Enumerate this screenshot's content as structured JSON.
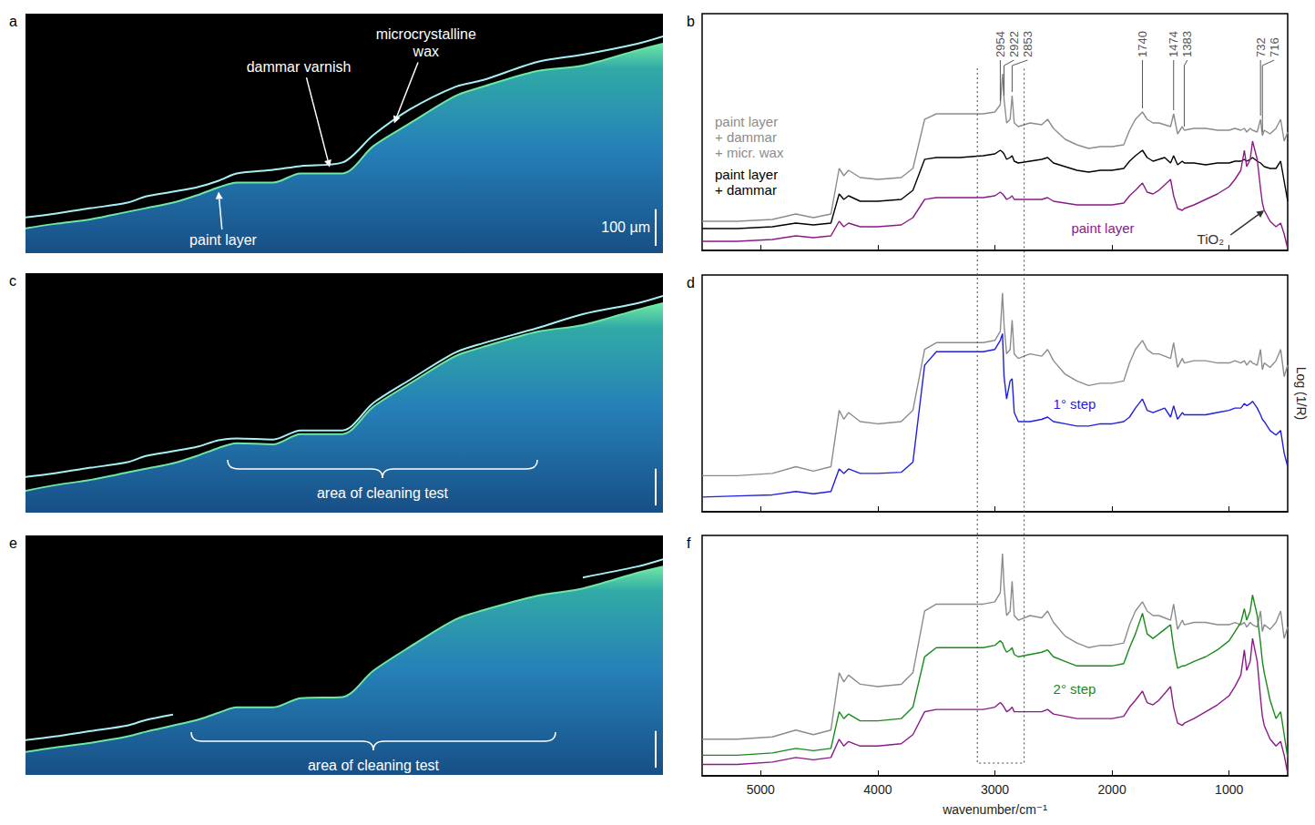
{
  "chart_data": [
    {
      "panel": "a",
      "type": "area",
      "x": [
        0,
        80,
        180,
        280,
        330,
        405,
        470,
        530,
        580,
        680,
        755,
        870,
        955,
        1055,
        1180,
        1255,
        1405,
        1530,
        1680,
        1750
      ],
      "xlim": [
        0,
        1750
      ],
      "ylim": [
        655,
        0
      ],
      "tick_labels": false,
      "series": [
        {
          "color": "#6ee6a4",
          "values": [
            587,
            575,
            562,
            542,
            532,
            517,
            497,
            475,
            462,
            462,
            437,
            437,
            362,
            300,
            225,
            200,
            157,
            142,
            100,
            82
          ]
        },
        {
          "color": "#a6f0f4",
          "values": [
            557,
            547,
            532,
            517,
            500,
            487,
            475,
            457,
            437,
            427,
            417,
            407,
            332,
            262,
            200,
            182,
            132,
            112,
            82,
            62
          ]
        }
      ],
      "annotations": [
        {
          "text": "paint layer",
          "x": 530,
          "y": 487
        },
        {
          "text": "dammar varnish",
          "x": 835,
          "y": 420
        },
        {
          "text": "microcrystalline wax",
          "x": 1012,
          "y": 300
        }
      ],
      "scale_bar": {
        "label": "100 µm",
        "length": 100
      }
    },
    {
      "panel": "b",
      "type": "line",
      "x": [
        5500,
        5200,
        4900,
        4700,
        4550,
        4400,
        4330,
        4290,
        4250,
        4150,
        4000,
        3800,
        3700,
        3600,
        3500,
        3300,
        3100,
        3000,
        2954,
        2935,
        2922,
        2900,
        2870,
        2853,
        2835,
        2800,
        2700,
        2600,
        2550,
        2500,
        2400,
        2300,
        2200,
        2100,
        2000,
        1900,
        1850,
        1800,
        1740,
        1700,
        1650,
        1600,
        1550,
        1500,
        1474,
        1440,
        1400,
        1383,
        1300,
        1200,
        1100,
        1000,
        950,
        900,
        870,
        850,
        820,
        800,
        760,
        732,
        716,
        700,
        650,
        600,
        560,
        530,
        500
      ],
      "xlim": [
        5500,
        500
      ],
      "xticks": [
        5000,
        4000,
        3000,
        2000,
        1000
      ],
      "ylim": [
        0,
        13
      ],
      "tick_labels": false,
      "series": [
        {
          "name": "paint layer + dammar + micr. wax",
          "color": "#8c8c8c",
          "values": [
            1.6,
            1.6,
            1.7,
            2.0,
            1.8,
            2.0,
            4.5,
            4.1,
            4.4,
            4.0,
            3.9,
            4.0,
            4.5,
            7.2,
            7.5,
            7.5,
            7.5,
            7.6,
            8.0,
            9.7,
            8.3,
            7.0,
            7.2,
            8.5,
            7.0,
            6.8,
            7.0,
            6.9,
            7.2,
            6.7,
            6.1,
            5.8,
            5.6,
            5.7,
            5.7,
            5.8,
            6.6,
            7.2,
            7.6,
            7.2,
            7.0,
            7.0,
            6.9,
            6.8,
            7.5,
            6.4,
            6.8,
            6.6,
            6.7,
            6.7,
            6.6,
            6.6,
            6.7,
            6.6,
            6.7,
            6.5,
            6.7,
            6.6,
            6.5,
            7.2,
            6.3,
            6.6,
            6.4,
            6.7,
            7.2,
            6.0,
            6.5
          ]
        },
        {
          "name": "paint layer + dammar",
          "color": "#000000",
          "values": [
            1.2,
            1.2,
            1.3,
            1.5,
            1.4,
            1.5,
            3.1,
            2.8,
            3.0,
            2.7,
            2.7,
            2.8,
            3.3,
            5.0,
            5.1,
            5.1,
            5.2,
            5.3,
            5.5,
            5.4,
            5.3,
            5.0,
            5.1,
            5.2,
            4.9,
            4.8,
            4.9,
            5.0,
            5.1,
            4.8,
            4.6,
            4.4,
            4.3,
            4.4,
            4.4,
            4.5,
            4.9,
            5.2,
            5.5,
            5.1,
            4.9,
            5.0,
            5.1,
            4.8,
            5.2,
            4.7,
            4.9,
            4.8,
            4.8,
            4.7,
            4.8,
            4.8,
            4.9,
            4.9,
            5.0,
            4.9,
            5.0,
            5.1,
            4.9,
            4.8,
            4.7,
            4.6,
            4.5,
            4.5,
            4.9,
            3.8,
            2.7
          ]
        },
        {
          "name": "paint layer",
          "color": "#8b1a89",
          "values": [
            0.5,
            0.5,
            0.6,
            0.8,
            0.7,
            0.8,
            1.6,
            1.3,
            1.5,
            1.3,
            1.3,
            1.4,
            1.8,
            2.8,
            2.9,
            2.9,
            2.9,
            3.0,
            3.2,
            3.1,
            3.0,
            2.8,
            2.9,
            3.0,
            2.8,
            2.8,
            2.8,
            2.8,
            2.9,
            2.7,
            2.6,
            2.5,
            2.5,
            2.5,
            2.5,
            2.6,
            3.0,
            3.3,
            3.7,
            3.2,
            3.1,
            3.3,
            3.6,
            3.9,
            3.0,
            2.3,
            2.2,
            2.3,
            2.5,
            2.8,
            3.1,
            3.5,
            3.9,
            4.4,
            5.5,
            4.6,
            5.0,
            6.0,
            5.0,
            3.4,
            2.6,
            2.2,
            1.6,
            1.3,
            1.5,
            0.9,
            0.1
          ]
        }
      ],
      "peak_labels": [
        2954,
        2922,
        2853,
        1740,
        1474,
        1383,
        732,
        716
      ],
      "annotations": [
        {
          "text": "TiO₂",
          "x": 700,
          "y": 2.2
        }
      ]
    },
    {
      "panel": "c",
      "type": "area",
      "x": [
        0,
        80,
        180,
        280,
        330,
        405,
        470,
        530,
        580,
        680,
        755,
        870,
        955,
        1055,
        1180,
        1255,
        1405,
        1530,
        1680,
        1750
      ],
      "xlim": [
        0,
        1750
      ],
      "ylim": [
        655,
        0
      ],
      "tick_labels": false,
      "series": [
        {
          "color": "#6ee6a4",
          "values": [
            595,
            580,
            565,
            545,
            535,
            520,
            500,
            478,
            465,
            468,
            440,
            440,
            365,
            302,
            227,
            202,
            160,
            142,
            100,
            82
          ]
        },
        {
          "color": "#a6f0f4",
          "values": [
            557,
            547,
            532,
            517,
            500,
            487,
            475,
            457,
            452,
            455,
            430,
            430,
            355,
            292,
            217,
            192,
            150,
            112,
            82,
            62
          ]
        }
      ],
      "bracket": {
        "text": "area of cleaning test",
        "x": [
          555,
          1405
        ]
      },
      "scale_bar": {
        "length": 100
      }
    },
    {
      "panel": "d",
      "type": "line",
      "x": [
        5500,
        5200,
        4900,
        4700,
        4550,
        4400,
        4330,
        4290,
        4250,
        4150,
        4000,
        3800,
        3700,
        3600,
        3500,
        3300,
        3100,
        3000,
        2954,
        2935,
        2922,
        2900,
        2870,
        2853,
        2835,
        2800,
        2700,
        2600,
        2550,
        2500,
        2400,
        2300,
        2200,
        2100,
        2000,
        1900,
        1850,
        1800,
        1740,
        1700,
        1650,
        1600,
        1550,
        1500,
        1474,
        1440,
        1400,
        1383,
        1300,
        1200,
        1100,
        1000,
        950,
        900,
        870,
        850,
        820,
        800,
        760,
        732,
        716,
        700,
        650,
        600,
        560,
        530,
        500
      ],
      "xlim": [
        5500,
        500
      ],
      "xticks": [
        5000,
        4000,
        3000,
        2000,
        1000
      ],
      "ylim": [
        0,
        10.5
      ],
      "ylabel": "Log (1/R)",
      "tick_labels": false,
      "series": [
        {
          "color": "#8c8c8c",
          "values": [
            1.6,
            1.6,
            1.7,
            2.0,
            1.8,
            2.0,
            4.5,
            4.1,
            4.4,
            4.0,
            3.9,
            4.0,
            4.5,
            7.2,
            7.5,
            7.5,
            7.5,
            7.6,
            8.0,
            9.7,
            8.3,
            7.0,
            7.2,
            8.5,
            7.0,
            6.8,
            7.0,
            6.9,
            7.2,
            6.7,
            6.1,
            5.8,
            5.6,
            5.7,
            5.7,
            5.8,
            6.6,
            7.2,
            7.6,
            7.2,
            7.0,
            7.0,
            6.9,
            6.8,
            7.5,
            6.4,
            6.8,
            6.6,
            6.7,
            6.7,
            6.6,
            6.6,
            6.7,
            6.6,
            6.7,
            6.5,
            6.7,
            6.6,
            6.5,
            7.2,
            6.3,
            6.6,
            6.4,
            6.7,
            7.2,
            6.0,
            6.5
          ]
        },
        {
          "name": "1° step",
          "color": "#1f1fe0",
          "values": [
            0.65,
            0.7,
            0.75,
            0.9,
            0.8,
            0.9,
            1.9,
            1.7,
            1.9,
            1.7,
            1.7,
            1.75,
            2.2,
            6.5,
            7.1,
            7.1,
            7.1,
            7.2,
            7.6,
            7.9,
            6.0,
            5.0,
            5.8,
            5.9,
            4.4,
            4.0,
            4.0,
            4.1,
            4.2,
            4.0,
            3.9,
            3.8,
            3.8,
            3.9,
            3.9,
            4.0,
            4.2,
            4.6,
            5.0,
            4.5,
            4.4,
            4.5,
            4.6,
            4.2,
            4.7,
            4.1,
            4.4,
            4.3,
            4.3,
            4.3,
            4.4,
            4.5,
            4.6,
            4.6,
            4.8,
            4.7,
            4.8,
            4.9,
            4.6,
            4.3,
            4.1,
            4.0,
            3.6,
            3.4,
            3.6,
            2.6,
            2.0
          ]
        }
      ]
    },
    {
      "panel": "e",
      "type": "area",
      "x": [
        0,
        80,
        180,
        280,
        330,
        405,
        470,
        530,
        580,
        680,
        755,
        870,
        955,
        1055,
        1180,
        1255,
        1405,
        1530,
        1680,
        1750
      ],
      "xlim": [
        0,
        1750
      ],
      "ylim": [
        655,
        0
      ],
      "tick_labels": false,
      "series": [
        {
          "color": "#6ee6a4",
          "values": [
            592,
            580,
            567,
            550,
            537,
            520,
            505,
            485,
            470,
            470,
            445,
            442,
            370,
            305,
            230,
            205,
            165,
            145,
            102,
            85
          ]
        },
        {
          "color": "#a6f0f4",
          "values": [
            560,
            550,
            535,
            520,
            505,
            490,
            null,
            null,
            null,
            null,
            null,
            null,
            null,
            null,
            null,
            null,
            null,
            115,
            85,
            65
          ]
        }
      ],
      "bracket": {
        "text": "area of cleaning test",
        "x": [
          455,
          1455
        ]
      },
      "scale_bar": {
        "length": 100
      }
    },
    {
      "panel": "f",
      "type": "line",
      "x": [
        5500,
        5200,
        4900,
        4700,
        4550,
        4400,
        4330,
        4290,
        4250,
        4150,
        4000,
        3800,
        3700,
        3600,
        3500,
        3300,
        3100,
        3000,
        2954,
        2935,
        2922,
        2900,
        2870,
        2853,
        2835,
        2800,
        2700,
        2600,
        2550,
        2500,
        2400,
        2300,
        2200,
        2100,
        2000,
        1900,
        1850,
        1800,
        1740,
        1700,
        1650,
        1600,
        1550,
        1500,
        1474,
        1440,
        1400,
        1383,
        1300,
        1200,
        1100,
        1000,
        950,
        900,
        870,
        850,
        820,
        800,
        760,
        732,
        716,
        700,
        650,
        600,
        560,
        530,
        500
      ],
      "xlim": [
        5500,
        500
      ],
      "xticks": [
        5000,
        4000,
        3000,
        2000,
        1000
      ],
      "ylim": [
        0,
        10.5
      ],
      "xlabel": "wavenumber/cm⁻¹",
      "tick_labels": "x",
      "series": [
        {
          "color": "#8c8c8c",
          "values": [
            1.6,
            1.6,
            1.7,
            2.0,
            1.8,
            2.0,
            4.5,
            4.1,
            4.4,
            4.0,
            3.9,
            4.0,
            4.5,
            7.2,
            7.5,
            7.5,
            7.5,
            7.6,
            8.0,
            9.7,
            8.3,
            7.0,
            7.2,
            8.5,
            7.0,
            6.8,
            7.0,
            6.9,
            7.2,
            6.7,
            6.1,
            5.8,
            5.6,
            5.7,
            5.7,
            5.8,
            6.6,
            7.2,
            7.6,
            7.2,
            7.0,
            7.0,
            6.9,
            6.8,
            7.5,
            6.4,
            6.8,
            6.6,
            6.7,
            6.7,
            6.6,
            6.6,
            6.7,
            6.6,
            6.7,
            6.5,
            6.7,
            6.6,
            6.5,
            7.2,
            6.3,
            6.6,
            6.4,
            6.7,
            7.2,
            6.0,
            6.5
          ]
        },
        {
          "name": "2° step",
          "color": "#1a8a1a",
          "values": [
            0.9,
            0.9,
            1.0,
            1.2,
            1.1,
            1.2,
            2.8,
            2.5,
            2.7,
            2.4,
            2.4,
            2.5,
            3.0,
            5.2,
            5.6,
            5.6,
            5.6,
            5.7,
            5.9,
            5.8,
            5.6,
            5.4,
            5.5,
            5.6,
            5.3,
            5.2,
            5.3,
            5.4,
            5.5,
            5.2,
            5.0,
            4.8,
            4.8,
            4.8,
            4.8,
            4.9,
            5.6,
            6.2,
            7.1,
            6.2,
            6.0,
            6.2,
            6.4,
            6.6,
            5.6,
            4.7,
            4.8,
            4.8,
            5.0,
            5.2,
            5.5,
            5.9,
            6.3,
            6.7,
            7.3,
            6.8,
            7.2,
            7.9,
            7.0,
            5.8,
            5.0,
            4.5,
            3.3,
            2.5,
            2.8,
            1.8,
            0.8
          ]
        },
        {
          "color": "#8b1a89",
          "values": [
            0.5,
            0.5,
            0.6,
            0.8,
            0.7,
            0.8,
            1.6,
            1.3,
            1.5,
            1.3,
            1.3,
            1.4,
            1.8,
            2.8,
            2.9,
            2.9,
            2.9,
            3.0,
            3.2,
            3.1,
            3.0,
            2.8,
            2.9,
            3.0,
            2.8,
            2.8,
            2.8,
            2.8,
            2.9,
            2.7,
            2.6,
            2.5,
            2.5,
            2.5,
            2.5,
            2.6,
            3.0,
            3.3,
            3.7,
            3.2,
            3.1,
            3.3,
            3.6,
            3.9,
            3.0,
            2.3,
            2.2,
            2.3,
            2.5,
            2.8,
            3.1,
            3.5,
            3.9,
            4.4,
            5.5,
            4.6,
            5.0,
            6.0,
            5.0,
            3.4,
            2.6,
            2.2,
            1.6,
            1.3,
            1.5,
            0.9,
            0.1
          ]
        }
      ]
    }
  ],
  "highlight_band": [
    3150,
    2750
  ]
}
